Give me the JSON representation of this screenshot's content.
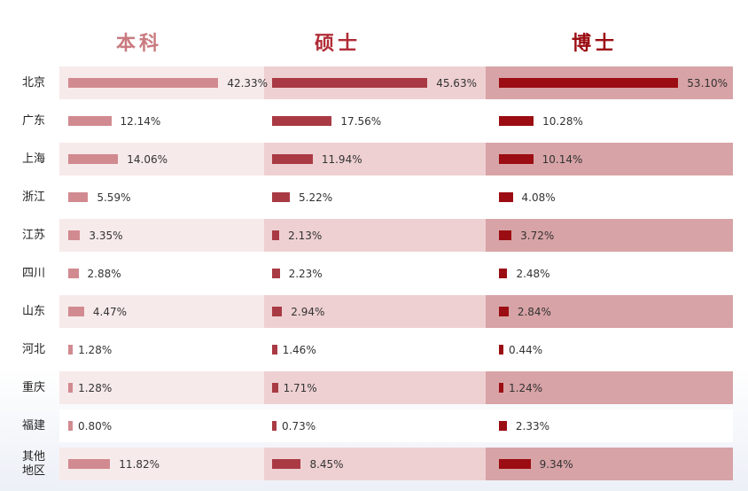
{
  "chart_data": {
    "type": "bar",
    "orientation": "horizontal",
    "categories": [
      "北京",
      "广东",
      "上海",
      "浙江",
      "江苏",
      "四川",
      "山东",
      "河北",
      "重庆",
      "福建",
      "其他地区"
    ],
    "series": [
      {
        "name": "本科",
        "color": "#d18a90",
        "header_color": "#c97a7f",
        "values": [
          42.33,
          12.14,
          14.06,
          5.59,
          3.35,
          2.88,
          4.47,
          1.28,
          1.28,
          0.8,
          11.82
        ],
        "labels": [
          "42.33%",
          "12.14%",
          "14.06%",
          "5.59%",
          "3.35%",
          "2.88%",
          "4.47%",
          "1.28%",
          "1.28%",
          "0.80%",
          "11.82%"
        ]
      },
      {
        "name": "硕士",
        "color": "#a93a44",
        "header_color": "#b02c36",
        "values": [
          45.63,
          17.56,
          11.94,
          5.22,
          2.13,
          2.23,
          2.94,
          1.46,
          1.71,
          0.73,
          8.45
        ],
        "labels": [
          "45.63%",
          "17.56%",
          "11.94%",
          "5.22%",
          "2.13%",
          "2.23%",
          "2.94%",
          "1.46%",
          "1.71%",
          "0.73%",
          "8.45%"
        ]
      },
      {
        "name": "博士",
        "color": "#9b0d12",
        "header_color": "#9b0d12",
        "values": [
          53.1,
          10.28,
          10.14,
          4.08,
          3.72,
          2.48,
          2.84,
          0.44,
          1.24,
          2.33,
          9.34
        ],
        "labels": [
          "53.10%",
          "10.28%",
          "10.14%",
          "4.08%",
          "3.72%",
          "2.48%",
          "2.84%",
          "0.44%",
          "1.24%",
          "2.33%",
          "9.34%"
        ]
      }
    ],
    "band_colors": {
      "odd": [
        "#f7eaea",
        "#eed0d2",
        "#d7a3a6"
      ],
      "even": [
        "#ffffff",
        "#ffffff",
        "#ffffff"
      ]
    }
  }
}
